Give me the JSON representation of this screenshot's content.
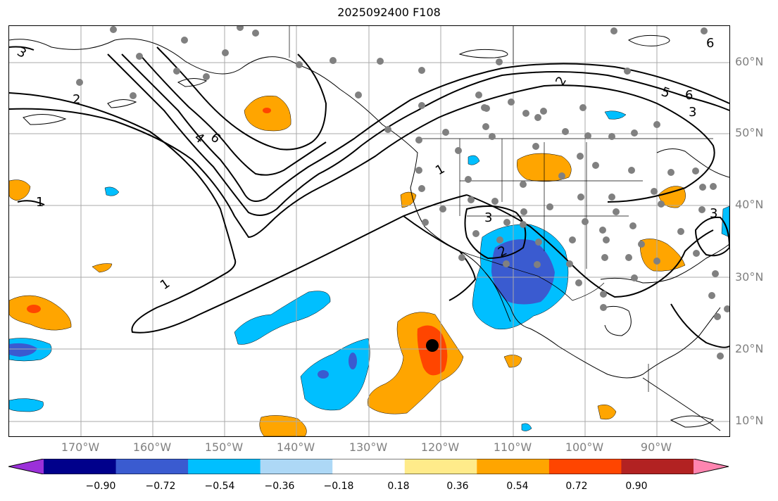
{
  "title": "2025092400 F108",
  "lat_labels": [
    "60°N",
    "50°N",
    "40°N",
    "30°N",
    "20°N",
    "10°N"
  ],
  "lon_labels": [
    "170°W",
    "160°W",
    "150°W",
    "140°W",
    "130°W",
    "120°W",
    "110°W",
    "100°W",
    "90°W"
  ],
  "contour_labels": [
    "1",
    "1",
    "1",
    "2",
    "2",
    "3",
    "3",
    "3",
    "4",
    "5",
    "6",
    "6",
    "6",
    "2",
    "3"
  ],
  "colorbar": {
    "ticks": [
      "−0.90",
      "−0.72",
      "−0.54",
      "−0.36",
      "−0.18",
      "0.18",
      "0.36",
      "0.54",
      "0.72",
      "0.90"
    ],
    "colors": [
      "#9b30d9",
      "#00008b",
      "#3a5bd0",
      "#00bfff",
      "#add8f6",
      "#ffffff",
      "#ffeb8a",
      "#ffa500",
      "#ff4500",
      "#b22222",
      "#ff85b0"
    ]
  },
  "marker": {
    "name": "storm-center",
    "color": "#000000"
  },
  "station_color": "#808080"
}
